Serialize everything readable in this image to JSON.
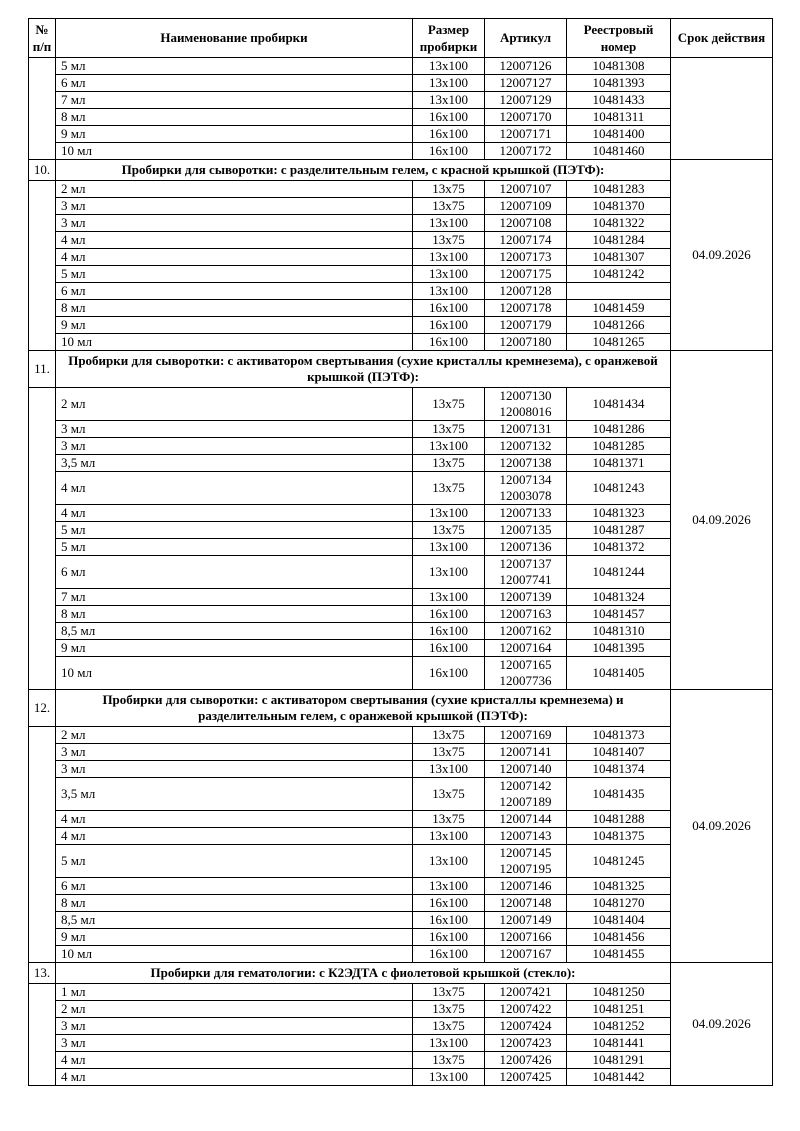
{
  "document": {
    "columns": {
      "num": "№ п/п",
      "name": "Наименование пробирки",
      "size": "Размер пробирки",
      "article": "Артикул",
      "registry": "Реестровый номер",
      "validity": "Срок действия"
    },
    "continuation": {
      "validity": "",
      "rows": [
        {
          "name": "5 мл",
          "size": "13x100",
          "article": "12007126",
          "registry": "10481308"
        },
        {
          "name": "6 мл",
          "size": "13x100",
          "article": "12007127",
          "registry": "10481393"
        },
        {
          "name": "7 мл",
          "size": "13x100",
          "article": "12007129",
          "registry": "10481433"
        },
        {
          "name": "8 мл",
          "size": "16x100",
          "article": "12007170",
          "registry": "10481311"
        },
        {
          "name": "9 мл",
          "size": "16x100",
          "article": "12007171",
          "registry": "10481400"
        },
        {
          "name": "10 мл",
          "size": "16x100",
          "article": "12007172",
          "registry": "10481460"
        }
      ]
    },
    "sections": [
      {
        "num": "10.",
        "title": "Пробирки для сыворотки: с разделительным гелем, с красной крышкой (ПЭТФ):",
        "validity": "04.09.2026",
        "rows": [
          {
            "name": "2 мл",
            "size": "13x75",
            "article": "12007107",
            "registry": "10481283"
          },
          {
            "name": "3 мл",
            "size": "13x75",
            "article": "12007109",
            "registry": "10481370"
          },
          {
            "name": "3 мл",
            "size": "13x100",
            "article": "12007108",
            "registry": "10481322"
          },
          {
            "name": "4 мл",
            "size": "13x75",
            "article": "12007174",
            "registry": "10481284"
          },
          {
            "name": "4 мл",
            "size": "13x100",
            "article": "12007173",
            "registry": "10481307"
          },
          {
            "name": "5 мл",
            "size": "13x100",
            "article": "12007175",
            "registry": "10481242"
          },
          {
            "name": "6 мл",
            "size": "13x100",
            "article": "12007128",
            "registry": ""
          },
          {
            "name": "8 мл",
            "size": "16x100",
            "article": "12007178",
            "registry": "10481459"
          },
          {
            "name": "9 мл",
            "size": "16x100",
            "article": "12007179",
            "registry": "10481266"
          },
          {
            "name": "10 мл",
            "size": "16x100",
            "article": "12007180",
            "registry": "10481265"
          }
        ]
      },
      {
        "num": "11.",
        "title": "Пробирки для сыворотки: с активатором свертывания (сухие кристаллы кремнезема), с оранжевой крышкой (ПЭТФ):",
        "validity": "04.09.2026",
        "rows": [
          {
            "name": "2 мл",
            "size": "13x75",
            "article": "12007130\n12008016",
            "registry": "10481434"
          },
          {
            "name": "3 мл",
            "size": "13x75",
            "article": "12007131",
            "registry": "10481286"
          },
          {
            "name": "3 мл",
            "size": "13x100",
            "article": "12007132",
            "registry": "10481285"
          },
          {
            "name": "3,5 мл",
            "size": "13x75",
            "article": "12007138",
            "registry": "10481371"
          },
          {
            "name": "4 мл",
            "size": "13x75",
            "article": "12007134\n12003078",
            "registry": "10481243"
          },
          {
            "name": "4 мл",
            "size": "13x100",
            "article": "12007133",
            "registry": "10481323"
          },
          {
            "name": "5 мл",
            "size": "13x75",
            "article": "12007135",
            "registry": "10481287"
          },
          {
            "name": "5 мл",
            "size": "13x100",
            "article": "12007136",
            "registry": "10481372"
          },
          {
            "name": "6 мл",
            "size": "13x100",
            "article": "12007137\n12007741",
            "registry": "10481244"
          },
          {
            "name": "7 мл",
            "size": "13x100",
            "article": "12007139",
            "registry": "10481324"
          },
          {
            "name": "8 мл",
            "size": "16x100",
            "article": "12007163",
            "registry": "10481457"
          },
          {
            "name": "8,5 мл",
            "size": "16x100",
            "article": "12007162",
            "registry": "10481310"
          },
          {
            "name": "9 мл",
            "size": "16x100",
            "article": "12007164",
            "registry": "10481395"
          },
          {
            "name": "10 мл",
            "size": "16x100",
            "article": "12007165\n12007736",
            "registry": "10481405"
          }
        ]
      },
      {
        "num": "12.",
        "title": "Пробирки для сыворотки: с активатором свертывания (сухие кристаллы кремнезема) и разделительным гелем, с оранжевой крышкой (ПЭТФ):",
        "validity": "04.09.2026",
        "rows": [
          {
            "name": "2 мл",
            "size": "13x75",
            "article": "12007169",
            "registry": "10481373"
          },
          {
            "name": "3 мл",
            "size": "13x75",
            "article": "12007141",
            "registry": "10481407"
          },
          {
            "name": "3 мл",
            "size": "13x100",
            "article": "12007140",
            "registry": "10481374"
          },
          {
            "name": "3,5 мл",
            "size": "13x75",
            "article": "12007142\n12007189",
            "registry": "10481435"
          },
          {
            "name": "4 мл",
            "size": "13x75",
            "article": "12007144",
            "registry": "10481288"
          },
          {
            "name": "4 мл",
            "size": "13x100",
            "article": "12007143",
            "registry": "10481375"
          },
          {
            "name": "5 мл",
            "size": "13x100",
            "article": "12007145\n12007195",
            "registry": "10481245"
          },
          {
            "name": "6 мл",
            "size": "13x100",
            "article": "12007146",
            "registry": "10481325"
          },
          {
            "name": "8 мл",
            "size": "16x100",
            "article": "12007148",
            "registry": "10481270"
          },
          {
            "name": "8,5 мл",
            "size": "16x100",
            "article": "12007149",
            "registry": "10481404"
          },
          {
            "name": "9 мл",
            "size": "16x100",
            "article": "12007166",
            "registry": "10481456"
          },
          {
            "name": "10 мл",
            "size": "16x100",
            "article": "12007167",
            "registry": "10481455"
          }
        ]
      },
      {
        "num": "13.",
        "title": "Пробирки для гематологии: с К2ЭДТА с фиолетовой крышкой (стекло):",
        "validity": "04.09.2026",
        "rows": [
          {
            "name": "1 мл",
            "size": "13x75",
            "article": "12007421",
            "registry": "10481250"
          },
          {
            "name": "2 мл",
            "size": "13x75",
            "article": "12007422",
            "registry": "10481251"
          },
          {
            "name": "3 мл",
            "size": "13x75",
            "article": "12007424",
            "registry": "10481252"
          },
          {
            "name": "3 мл",
            "size": "13x100",
            "article": "12007423",
            "registry": "10481441"
          },
          {
            "name": "4 мл",
            "size": "13x75",
            "article": "12007426",
            "registry": "10481291"
          },
          {
            "name": "4 мл",
            "size": "13x100",
            "article": "12007425",
            "registry": "10481442"
          }
        ]
      }
    ]
  }
}
